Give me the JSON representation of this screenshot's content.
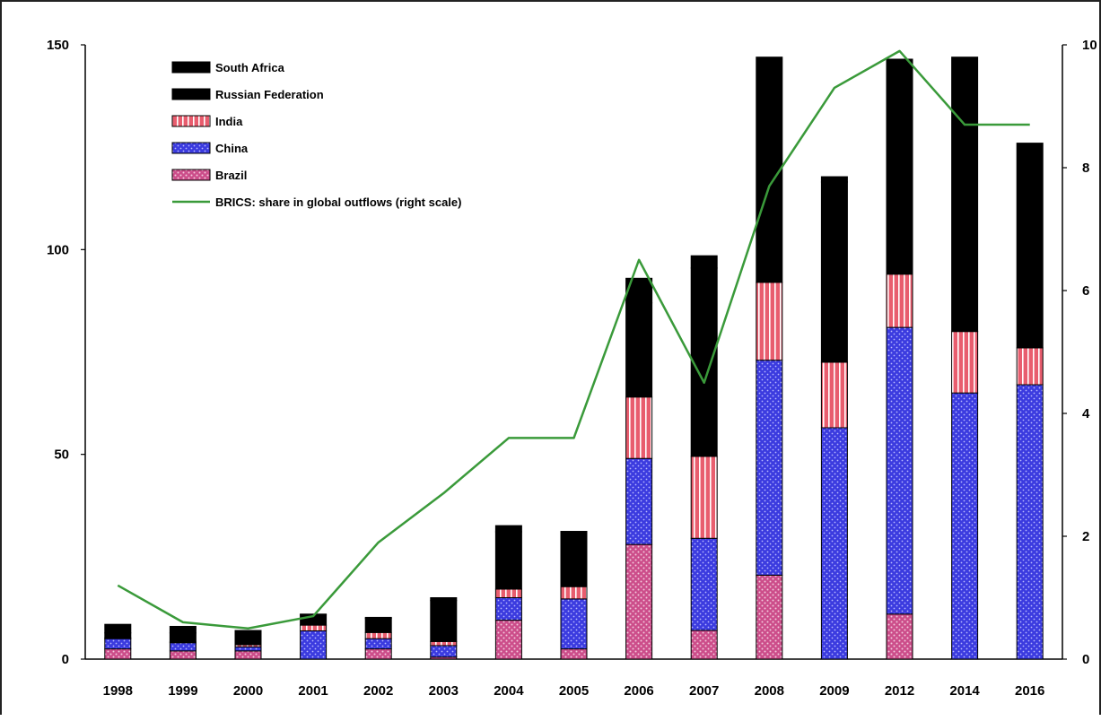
{
  "chart_data": {
    "type": "bar",
    "stacked": true,
    "title": "",
    "xlabel": "",
    "ylabel": "",
    "categories": [
      "1998",
      "1999",
      "2000",
      "2001",
      "2002",
      "2003",
      "2004",
      "2005",
      "2006",
      "2007",
      "2008",
      "2009",
      "2012",
      "2014",
      "2016"
    ],
    "ylim": [
      0,
      150
    ],
    "yticks": [
      0,
      50,
      100,
      150
    ],
    "y2lim": [
      0,
      10
    ],
    "y2ticks": [
      0,
      2,
      4,
      6,
      8,
      10
    ],
    "y2ticklabels": [
      "0",
      "2",
      "4",
      "6",
      "8",
      "10"
    ],
    "legend_position": "top-left",
    "grid": false,
    "colors": {
      "Brazil": "#cc4d8a",
      "China": "#3b3bdf",
      "India": "#e85d6e",
      "Russian Federation": "#f5c10e",
      "South Africa": "#5fcde0",
      "BRICS": "#3a9a3a"
    },
    "series": [
      {
        "name": "Brazil",
        "values": [
          2.5,
          2.0,
          2.0,
          0,
          2.5,
          0.5,
          9.5,
          2.5,
          28,
          7,
          20.5,
          0,
          11,
          0,
          0
        ]
      },
      {
        "name": "China",
        "values": [
          2.5,
          2.0,
          1.0,
          6.9,
          2.5,
          2.8,
          5.5,
          12.2,
          21,
          22.5,
          52.5,
          56.5,
          70,
          65,
          67
        ]
      },
      {
        "name": "India",
        "values": [
          0.2,
          0.2,
          0.5,
          1.4,
          1.5,
          1.0,
          2.1,
          3.0,
          15,
          20,
          19,
          16,
          13,
          15,
          9
        ]
      },
      {
        "name": "Russian Federation",
        "values": [
          1.2,
          2.2,
          3.2,
          2.5,
          3.5,
          10.0,
          14.0,
          12.5,
          23,
          46,
          55,
          44,
          52,
          67,
          50
        ]
      },
      {
        "name": "South Africa",
        "values": [
          2.1,
          1.6,
          0.3,
          0.2,
          0.2,
          0.7,
          1.5,
          1.0,
          6,
          3,
          0,
          1.3,
          0.5,
          0,
          0
        ]
      }
    ],
    "line": {
      "name": "BRICS: share in global outflows (right scale)",
      "axis": "right",
      "values": [
        1.2,
        0.6,
        0.5,
        0.7,
        1.9,
        2.7,
        3.6,
        3.6,
        6.5,
        4.5,
        7.7,
        9.3,
        9.9,
        8.7,
        8.7
      ]
    },
    "legend": [
      {
        "key": "South Africa",
        "label": "South Africa"
      },
      {
        "key": "Russian Federation",
        "label": "Russian Federation"
      },
      {
        "key": "India",
        "label": "India"
      },
      {
        "key": "China",
        "label": "China"
      },
      {
        "key": "Brazil",
        "label": "Brazil"
      },
      {
        "key": "BRICS",
        "label": "BRICS: share in global outflows (right scale)",
        "kind": "line"
      }
    ]
  }
}
